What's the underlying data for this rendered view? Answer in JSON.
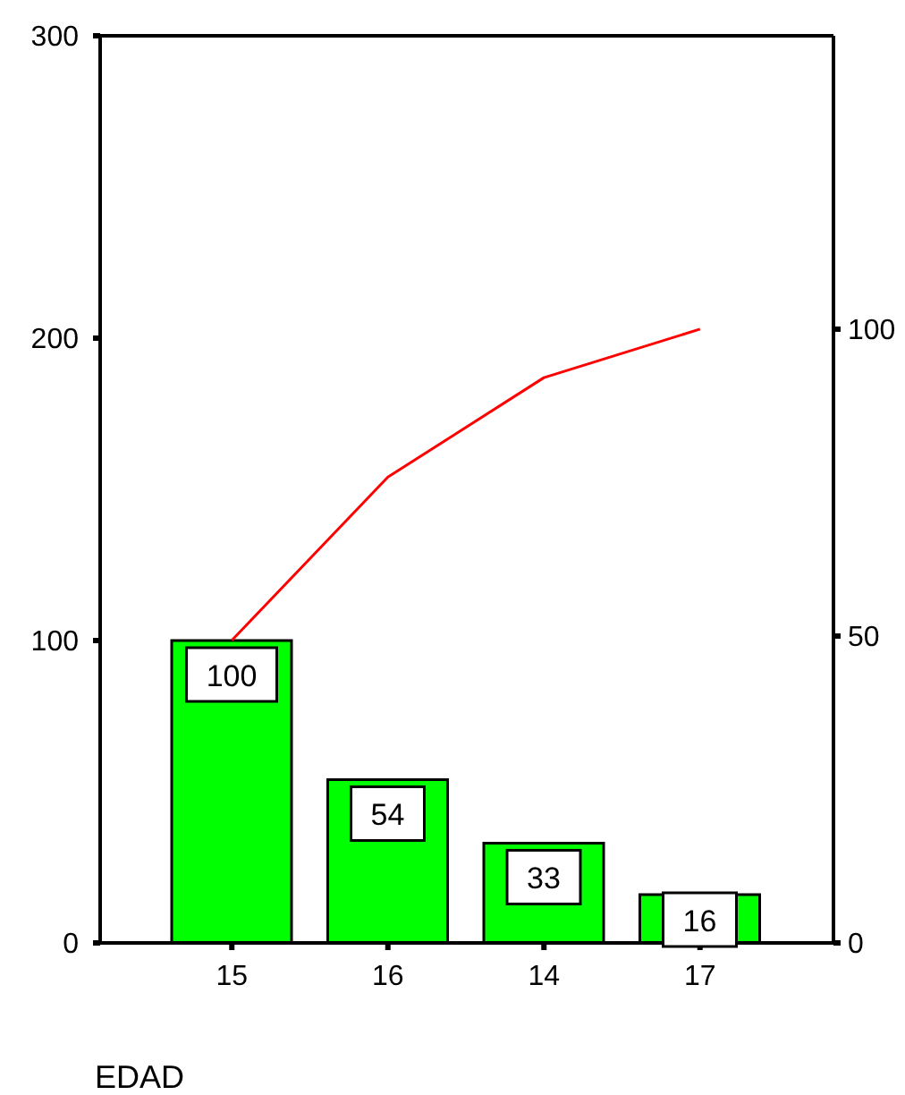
{
  "chart_data": {
    "type": "bar",
    "xlabel": "EDAD",
    "categories": [
      "15",
      "16",
      "14",
      "17"
    ],
    "series": [
      {
        "color": "#00ff00",
        "values": [
          100,
          54,
          33,
          16
        ],
        "value_labels": [
          "100",
          "54",
          "33",
          "16"
        ]
      },
      {
        "type": "line",
        "axis": "y2",
        "color": "#ff0000",
        "values": [
          49.3,
          75.9,
          92.1,
          100
        ]
      }
    ],
    "ylim": [
      0,
      300
    ],
    "yticks": [
      0,
      100,
      200,
      300
    ],
    "y2lim": [
      0,
      147.8
    ],
    "y2ticks": [
      0,
      50,
      100
    ],
    "grid": false,
    "legend": false
  }
}
